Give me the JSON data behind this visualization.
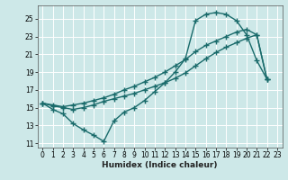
{
  "bg_color": "#cde8e8",
  "grid_color": "#ffffff",
  "line_color": "#1a6b6b",
  "line_width": 1.0,
  "marker": "+",
  "marker_size": 4,
  "marker_edge_width": 1.0,
  "xlabel": "Humidex (Indice chaleur)",
  "xlabel_fontsize": 6.5,
  "tick_fontsize": 5.5,
  "xlim": [
    -0.5,
    23.5
  ],
  "ylim": [
    10.5,
    26.5
  ],
  "yticks": [
    11,
    13,
    15,
    17,
    19,
    21,
    23,
    25
  ],
  "xticks": [
    0,
    1,
    2,
    3,
    4,
    5,
    6,
    7,
    8,
    9,
    10,
    11,
    12,
    13,
    14,
    15,
    16,
    17,
    18,
    19,
    20,
    21,
    22,
    23
  ],
  "line1_x": [
    0,
    1,
    2,
    3,
    4,
    5,
    6,
    7,
    8,
    9,
    10,
    11,
    12,
    13,
    14,
    15,
    16,
    17,
    18,
    19,
    20,
    21,
    22
  ],
  "line1_y": [
    15.5,
    14.8,
    14.3,
    13.2,
    12.5,
    11.9,
    11.2,
    13.5,
    14.5,
    15.0,
    15.8,
    16.8,
    17.8,
    19.0,
    20.5,
    24.8,
    25.5,
    25.7,
    25.5,
    24.8,
    23.2,
    20.3,
    18.2
  ],
  "line2_x": [
    0,
    1,
    2,
    3,
    4,
    5,
    6,
    7,
    8,
    9,
    10,
    11,
    12,
    13,
    14,
    15,
    16,
    17,
    18,
    19,
    20,
    21,
    22
  ],
  "line2_y": [
    15.5,
    15.2,
    15.0,
    14.8,
    15.0,
    15.3,
    15.7,
    16.0,
    16.3,
    16.6,
    17.0,
    17.4,
    17.8,
    18.3,
    18.9,
    19.7,
    20.5,
    21.2,
    21.8,
    22.3,
    22.8,
    23.2,
    18.2
  ],
  "line3_x": [
    0,
    1,
    2,
    3,
    4,
    5,
    6,
    7,
    8,
    9,
    10,
    11,
    12,
    13,
    14,
    15,
    16,
    17,
    18,
    19,
    20,
    21,
    22
  ],
  "line3_y": [
    15.5,
    15.3,
    15.1,
    15.3,
    15.5,
    15.8,
    16.1,
    16.5,
    17.0,
    17.4,
    17.9,
    18.4,
    19.0,
    19.7,
    20.4,
    21.3,
    22.0,
    22.5,
    23.0,
    23.5,
    23.8,
    23.2,
    18.2
  ]
}
